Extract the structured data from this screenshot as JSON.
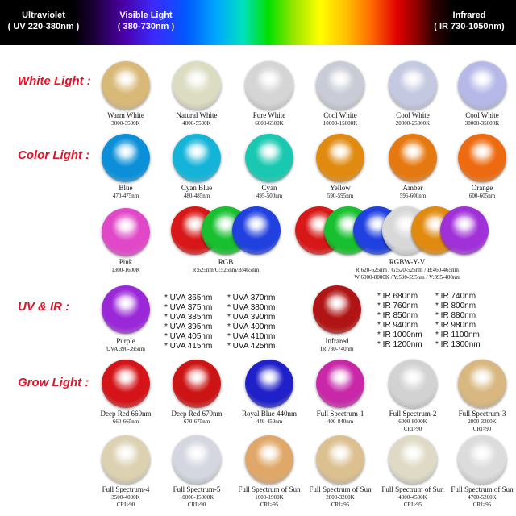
{
  "spectrum": {
    "uv": {
      "title": "Ultraviolet",
      "range": "( UV 220-380nm )"
    },
    "visible": {
      "title": "Visible Light",
      "range": "( 380-730nm )"
    },
    "ir": {
      "title": "Infrared",
      "range": "( IR 730-1050nm)"
    }
  },
  "sections": {
    "white": "White Light :",
    "color": "Color Light :",
    "uvir": "UV & IR :",
    "grow": "Grow Light :"
  },
  "white_leds": [
    {
      "name": "Warm White",
      "spec": "3000-3500K",
      "color": "#d9b978"
    },
    {
      "name": "Natural White",
      "spec": "4000-5500K",
      "color": "#dcdcc2"
    },
    {
      "name": "Pure White",
      "spec": "6000-6500K",
      "color": "#d5d5d5"
    },
    {
      "name": "Cool White",
      "spec": "10000-15000K",
      "color": "#c9ccd6"
    },
    {
      "name": "Cool White",
      "spec": "20000-25000K",
      "color": "#c4c8e0"
    },
    {
      "name": "Cool White",
      "spec": "30000-35000K",
      "color": "#b6b9e8"
    }
  ],
  "color_leds": [
    {
      "name": "Blue",
      "spec": "470-475nm",
      "color": "#0a8fd8"
    },
    {
      "name": "Cyan Blue",
      "spec": "480-485nm",
      "color": "#14b4d8"
    },
    {
      "name": "Cyan",
      "spec": "495-500nm",
      "color": "#18c8b0"
    },
    {
      "name": "Yellow",
      "spec": "590-595nm",
      "color": "#e08a10"
    },
    {
      "name": "Amber",
      "spec": "595-600nm",
      "color": "#e67810"
    },
    {
      "name": "Orange",
      "spec": "600-605nm",
      "color": "#ee6a10"
    }
  ],
  "pink": {
    "name": "Pink",
    "spec": "1300-1600K",
    "color": "#e048c8"
  },
  "rgb": {
    "name": "RGB",
    "spec": "R:625nm/G:525nm/B:465nm",
    "colors": [
      "#d81818",
      "#18c030",
      "#2040e0"
    ]
  },
  "rgbwyv": {
    "name": "RGBW-Y-V",
    "spec1": "R:620-625nm / G:520-525nm / B:460-465nm",
    "spec2": "W:6000-8000K / Y:590-595nm / V:395-400nm",
    "colors": [
      "#d81818",
      "#18c030",
      "#2040e0",
      "#d8d8d8",
      "#e08a10",
      "#a030d8"
    ]
  },
  "purple": {
    "name": "Purple",
    "spec": "UVA 390-395nm",
    "color": "#9a28d8"
  },
  "uva_col1": [
    "* UVA 365nm",
    "* UVA 375nm",
    "* UVA 385nm",
    "* UVA 395nm",
    "* UVA 405nm",
    "* UVA 415nm"
  ],
  "uva_col2": [
    "* UVA 370nm",
    "* UVA 380nm",
    "* UVA 390nm",
    "* UVA 400nm",
    "* UVA 410nm",
    "* UVA 425nm"
  ],
  "infrared": {
    "name": "Infrared",
    "spec": "IR 730-740nm",
    "color": "#b01414"
  },
  "ir_col1": [
    "* IR 680nm",
    "* IR 760nm",
    "* IR 850nm",
    "* IR 940nm",
    "* IR 1000nm",
    "* IR 1200nm"
  ],
  "ir_col2": [
    "* IR 740nm",
    "* IR 800nm",
    "* IR 880nm",
    "* IR 980nm",
    "* IR 1100nm",
    "* IR 1300nm"
  ],
  "grow_row1": [
    {
      "name": "Deep Red 660nm",
      "spec": "660-665nm",
      "spec2": "",
      "color": "#d41418"
    },
    {
      "name": "Deep Red 670nm",
      "spec": "670-675nm",
      "spec2": "",
      "color": "#cc1414"
    },
    {
      "name": "Royal Blue 440nm",
      "spec": "440-450nm",
      "spec2": "",
      "color": "#2020c8"
    },
    {
      "name": "Full Spectrum-1",
      "spec": "400-840nm",
      "spec2": "",
      "color": "#c828a8"
    },
    {
      "name": "Full Spectrum-2",
      "spec": "6000-8000K",
      "spec2": "CRI>90",
      "color": "#d2d2d2"
    },
    {
      "name": "Full Spectrum-3",
      "spec": "2800-3200K",
      "spec2": "CRI>90",
      "color": "#d8b880"
    }
  ],
  "grow_row2": [
    {
      "name": "Full Spectrum-4",
      "spec": "3500-4000K",
      "spec2": "CRI>90",
      "color": "#dcd2b2"
    },
    {
      "name": "Full Spectrum-5",
      "spec": "10000-15000K",
      "spec2": "CRI>90",
      "color": "#d4d6e0"
    },
    {
      "name": "Full Spectrum of Sun",
      "spec": "1600-1900K",
      "spec2": "CRI>95",
      "color": "#e0a868"
    },
    {
      "name": "Full Spectrum of Sun",
      "spec": "2800-3200K",
      "spec2": "CRI>95",
      "color": "#dcc090"
    },
    {
      "name": "Full Spectrum of Sun",
      "spec": "4000-4500K",
      "spec2": "CRI>95",
      "color": "#dedac6"
    },
    {
      "name": "Full Spectrum of Sun",
      "spec": "4700-5200K",
      "spec2": "CRI>95",
      "color": "#dcdcdc"
    }
  ]
}
